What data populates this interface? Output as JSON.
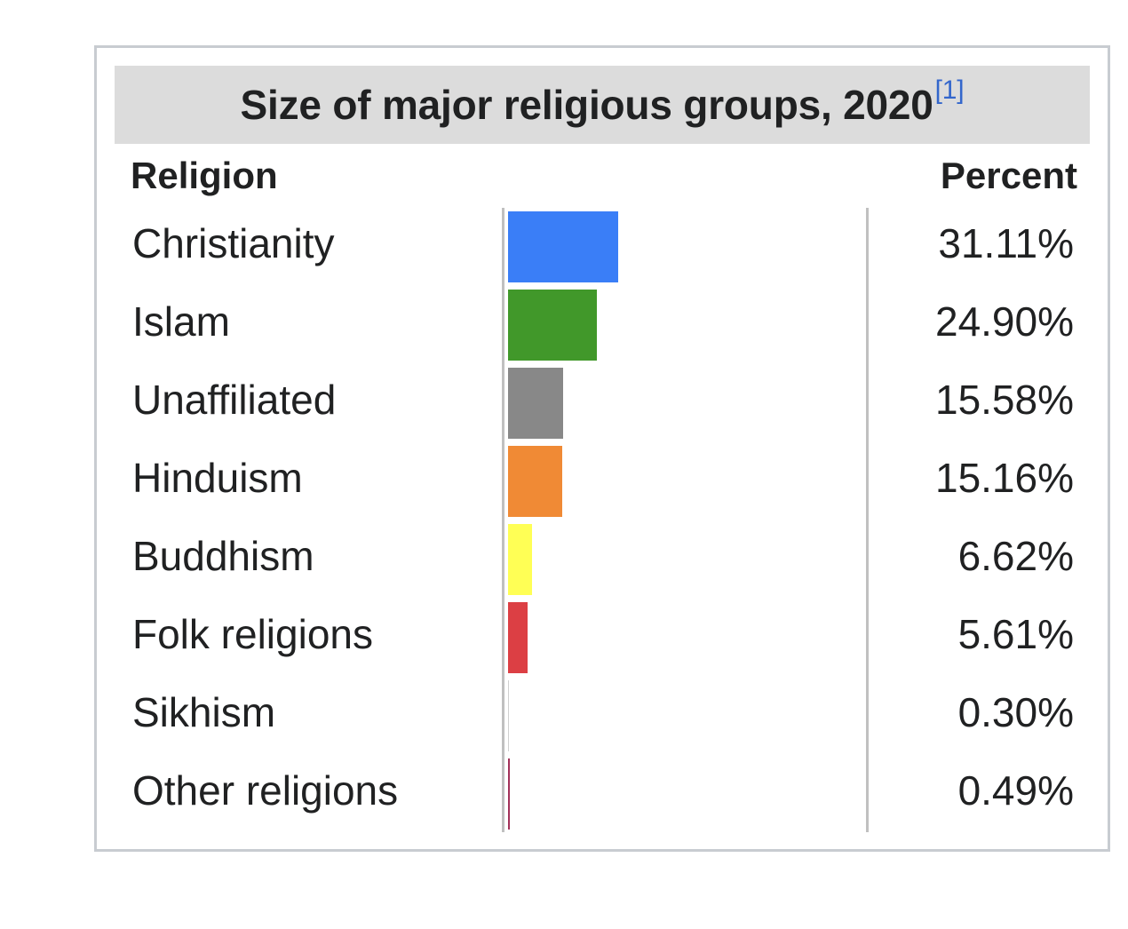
{
  "chart_data": {
    "type": "bar",
    "orientation": "horizontal",
    "title": "Size of major religious groups, 2020",
    "title_ref": "[1]",
    "column_headers": {
      "label": "Religion",
      "value": "Percent"
    },
    "categories": [
      "Christianity",
      "Islam",
      "Unaffiliated",
      "Hinduism",
      "Buddhism",
      "Folk religions",
      "Sikhism",
      "Other religions"
    ],
    "values": [
      31.11,
      24.9,
      15.58,
      15.16,
      6.62,
      5.61,
      0.3,
      0.49
    ],
    "value_labels": [
      "31.11%",
      "24.90%",
      "15.58%",
      "15.16%",
      "6.62%",
      "5.61%",
      "0.30%",
      "0.49%"
    ],
    "colors": [
      "#3a7ef7",
      "#41982a",
      "#888888",
      "#f08a35",
      "#ffff55",
      "#dc3f44",
      "#ffffff",
      "#a3325a"
    ],
    "xlim": [
      0,
      100
    ]
  }
}
